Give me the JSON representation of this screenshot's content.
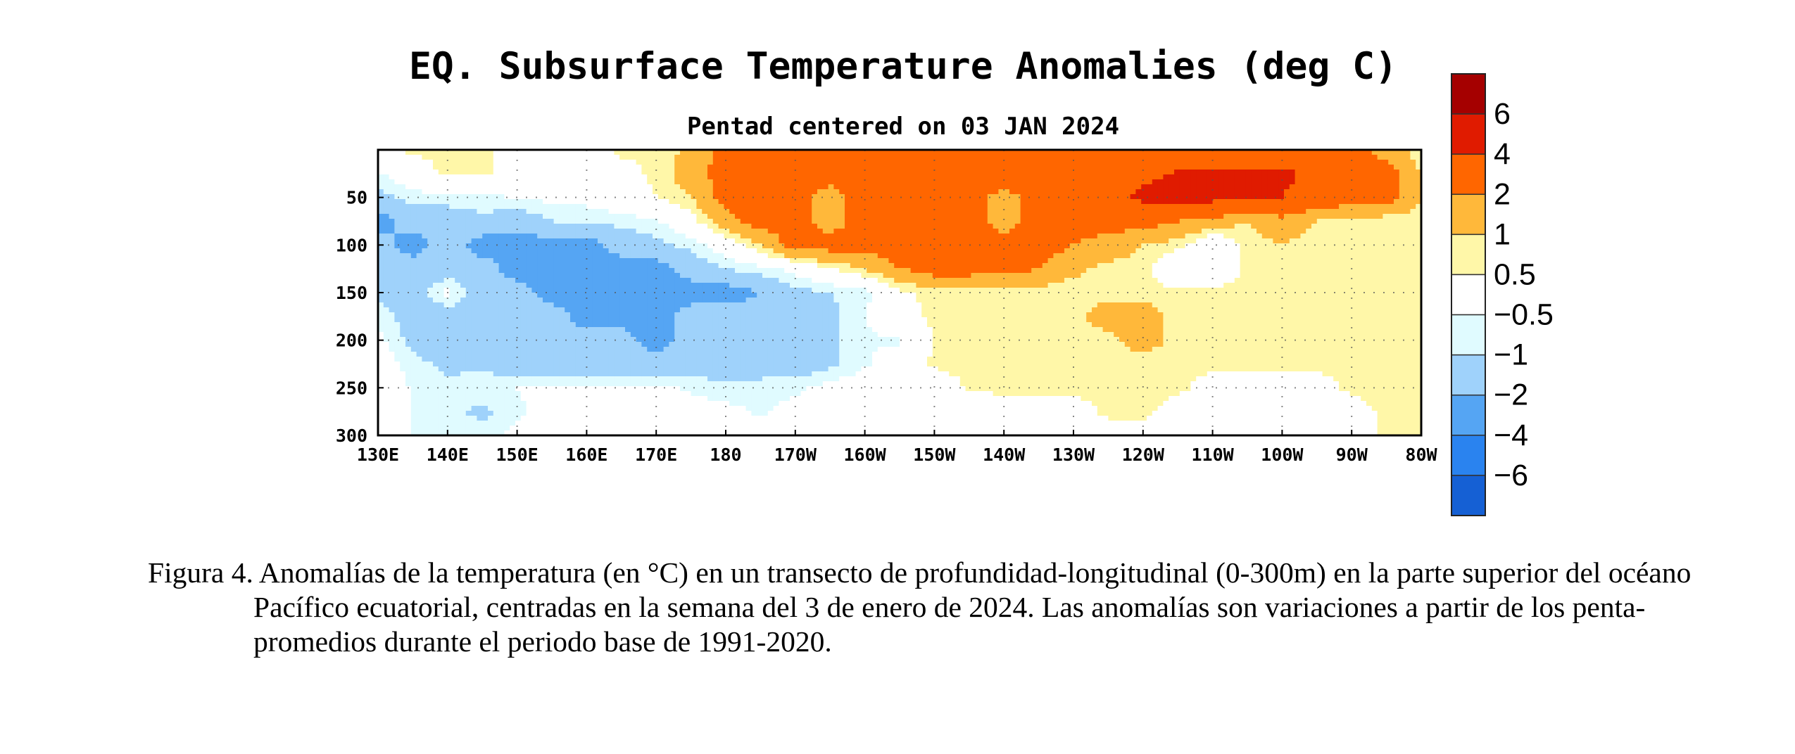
{
  "chart_data": {
    "type": "heatmap",
    "title": "EQ. Subsurface Temperature Anomalies (deg C)",
    "subtitle": "Pentad centered on 03 JAN 2024",
    "xlabel": "",
    "ylabel": "",
    "x_ticks": [
      "130E",
      "140E",
      "150E",
      "160E",
      "170E",
      "180",
      "170W",
      "160W",
      "150W",
      "140W",
      "130W",
      "120W",
      "110W",
      "100W",
      "90W",
      "80W"
    ],
    "x_lon_east": [
      130,
      140,
      150,
      160,
      170,
      180,
      190,
      200,
      210,
      220,
      230,
      240,
      250,
      260,
      270,
      280
    ],
    "xlim_lon_east": [
      130,
      280
    ],
    "y_ticks": [
      "50",
      "100",
      "150",
      "200",
      "250",
      "300"
    ],
    "y_values": [
      50,
      100,
      150,
      200,
      250,
      300
    ],
    "ylim": [
      0,
      300
    ],
    "y_inverted": true,
    "grid": true,
    "colorbar_labels": [
      "6",
      "4",
      "2",
      "1",
      "0.5",
      "−0.5",
      "−1",
      "−2",
      "−4",
      "−6"
    ],
    "colorbar_levels": [
      6,
      4,
      2,
      1,
      0.5,
      -0.5,
      -1,
      -2,
      -4,
      -6
    ],
    "colorbar_colors": [
      "#a50000",
      "#e01b00",
      "#ff6600",
      "#ffb83a",
      "#fff7a8",
      "#ffffff",
      "#e0fbff",
      "#9fd2fb",
      "#55a5f3",
      "#2a83ef",
      "#1560d4"
    ],
    "field": {
      "lon_east": [
        130,
        135,
        140,
        145,
        150,
        155,
        160,
        165,
        170,
        175,
        180,
        185,
        190,
        195,
        200,
        205,
        210,
        215,
        220,
        225,
        230,
        235,
        240,
        245,
        250,
        255,
        260,
        265,
        270,
        275,
        280
      ],
      "depth": [
        0,
        25,
        50,
        75,
        100,
        125,
        150,
        175,
        200,
        225,
        250,
        275,
        300
      ],
      "anomaly": [
        [
          0.2,
          0.6,
          0.6,
          0.6,
          0.3,
          0.2,
          0.2,
          0.6,
          0.6,
          1.2,
          2.5,
          2.5,
          2.5,
          2.5,
          2.5,
          2.5,
          2.5,
          2.5,
          2.5,
          2.5,
          2.5,
          2.5,
          2.5,
          2.5,
          2.5,
          2.5,
          2.5,
          2.5,
          2.5,
          1.5,
          0.6
        ],
        [
          -0.6,
          0.2,
          0.6,
          0.6,
          0.2,
          0.0,
          0.0,
          0.3,
          0.6,
          1.5,
          2.5,
          3.0,
          3.0,
          2.5,
          3.0,
          2.5,
          2.5,
          3.0,
          3.0,
          3.0,
          2.5,
          3.0,
          3.5,
          4.2,
          4.5,
          4.2,
          4.5,
          3.5,
          3.0,
          2.5,
          1.0
        ],
        [
          -1.2,
          -0.8,
          -0.7,
          -0.6,
          -0.5,
          -0.3,
          -0.2,
          0.2,
          0.5,
          1.0,
          2.5,
          3.0,
          2.5,
          1.5,
          2.5,
          2.5,
          2.5,
          2.5,
          1.5,
          2.5,
          2.5,
          3.0,
          4.5,
          5.0,
          4.5,
          4.5,
          4.0,
          3.0,
          2.5,
          2.5,
          1.0
        ],
        [
          -2.5,
          -1.5,
          -1.5,
          -1.2,
          -1.5,
          -1.0,
          -1.0,
          -0.8,
          -0.6,
          0.2,
          1.5,
          2.5,
          2.5,
          1.5,
          2.5,
          2.5,
          2.5,
          2.5,
          1.5,
          2.5,
          2.5,
          2.5,
          2.5,
          2.0,
          1.5,
          1.0,
          1.5,
          1.0,
          0.8,
          0.6,
          0.6
        ],
        [
          -1.5,
          -2.5,
          -1.5,
          -2.5,
          -2.5,
          -2.5,
          -2.5,
          -1.5,
          -1.2,
          -0.8,
          0.0,
          1.0,
          2.5,
          2.5,
          2.5,
          2.5,
          2.5,
          2.5,
          2.5,
          2.5,
          2.0,
          1.5,
          1.0,
          0.7,
          -0.3,
          0.7,
          1.0,
          0.7,
          0.7,
          0.6,
          0.6
        ],
        [
          -1.2,
          -1.5,
          -1.5,
          -1.5,
          -2.5,
          -2.5,
          -2.5,
          -2.5,
          -2.5,
          -1.5,
          -1.0,
          -0.7,
          -0.3,
          0.5,
          1.0,
          2.0,
          2.5,
          2.5,
          2.5,
          2.0,
          1.2,
          0.8,
          0.7,
          -0.3,
          -0.3,
          0.7,
          0.7,
          0.7,
          0.6,
          0.6,
          0.6
        ],
        [
          -1.2,
          -1.5,
          -0.3,
          -1.5,
          -1.5,
          -2.5,
          -2.5,
          -2.5,
          -2.5,
          -2.5,
          -2.5,
          -2.0,
          -1.2,
          -1.0,
          -0.7,
          0.3,
          0.7,
          0.7,
          0.6,
          0.7,
          0.6,
          0.7,
          0.7,
          0.7,
          0.7,
          0.7,
          0.7,
          0.7,
          0.6,
          0.6,
          0.6
        ],
        [
          -0.6,
          -1.5,
          -1.5,
          -1.5,
          -1.5,
          -1.5,
          -2.5,
          -2.5,
          -2.5,
          -1.5,
          -1.5,
          -1.5,
          -1.5,
          -1.2,
          -0.5,
          0.3,
          0.6,
          0.6,
          0.7,
          0.6,
          0.7,
          1.5,
          1.5,
          0.7,
          0.7,
          0.6,
          0.6,
          0.6,
          0.6,
          0.6,
          0.6
        ],
        [
          -0.3,
          -1.2,
          -1.5,
          -1.5,
          -1.5,
          -1.5,
          -1.5,
          -1.5,
          -2.5,
          -1.5,
          -1.5,
          -1.5,
          -1.5,
          -1.2,
          -0.6,
          -0.6,
          0.6,
          0.7,
          0.7,
          0.6,
          0.7,
          0.7,
          1.5,
          0.7,
          0.7,
          0.6,
          0.6,
          0.6,
          0.6,
          0.6,
          0.6
        ],
        [
          0.0,
          -0.8,
          -1.2,
          -1.2,
          -1.5,
          -1.5,
          -1.5,
          -1.5,
          -1.5,
          -1.5,
          -1.5,
          -1.5,
          -1.5,
          -1.2,
          -0.6,
          0.0,
          0.6,
          0.7,
          0.7,
          0.6,
          0.7,
          0.6,
          0.6,
          0.6,
          0.6,
          0.6,
          0.6,
          0.6,
          0.6,
          0.6,
          0.6
        ],
        [
          0.3,
          -0.6,
          -0.8,
          -0.6,
          -0.5,
          -0.3,
          -0.3,
          -0.3,
          -0.3,
          -0.6,
          -0.8,
          -0.7,
          -0.6,
          -0.3,
          0.0,
          0.0,
          0.0,
          0.6,
          0.6,
          0.6,
          0.6,
          0.6,
          0.6,
          0.6,
          0.3,
          0.3,
          0.3,
          0.3,
          0.6,
          0.6,
          0.6
        ],
        [
          0.3,
          -0.6,
          -0.8,
          -1.2,
          -0.6,
          -0.3,
          -0.3,
          -0.3,
          -0.2,
          -0.2,
          -0.3,
          -0.6,
          -0.3,
          0.0,
          0.0,
          0.0,
          0.0,
          0.0,
          0.3,
          0.3,
          0.3,
          0.6,
          0.6,
          0.3,
          0.2,
          0.2,
          0.2,
          0.2,
          0.3,
          0.6,
          0.6
        ],
        [
          0.2,
          -0.6,
          -0.7,
          -0.7,
          -0.3,
          -0.2,
          -0.2,
          -0.2,
          -0.2,
          -0.2,
          -0.2,
          -0.2,
          0.0,
          0.0,
          0.0,
          0.0,
          0.0,
          0.0,
          0.2,
          0.2,
          0.2,
          0.3,
          0.3,
          0.3,
          0.2,
          0.2,
          0.2,
          0.2,
          0.3,
          0.6,
          0.6
        ]
      ]
    }
  },
  "caption": {
    "text": "Figura 4. Anomalías de la temperatura (en °C) en un transecto de profundidad-longitudinal (0-300m) en la parte superior del océano Pacífico ecuatorial, centradas en la semana del 3 de enero de 2024. Las anomalías son variaciones a partir de los penta-promedios durante el periodo base de 1991-2020."
  }
}
